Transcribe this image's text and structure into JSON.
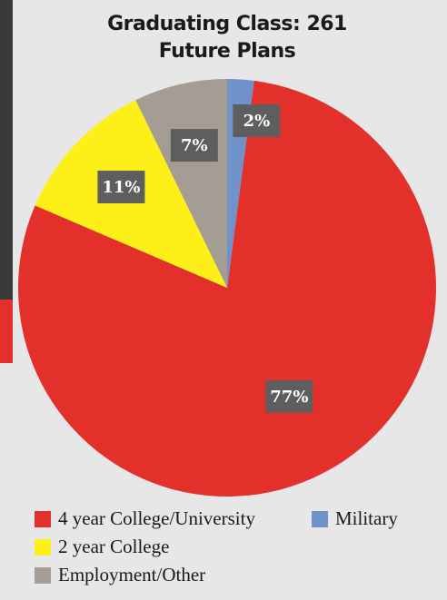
{
  "chart_data": {
    "type": "pie",
    "title": "Graduating Class: 261",
    "subtitle": "Future Plans",
    "categories": [
      "4 year College/University",
      "2 year College",
      "Employment/Other",
      "Military"
    ],
    "values": [
      77,
      11,
      7,
      2
    ],
    "value_labels": [
      "77%",
      "11%",
      "7%",
      "2%"
    ],
    "colors": [
      "#e3302b",
      "#fdf019",
      "#a59d93",
      "#6f93c9"
    ]
  }
}
